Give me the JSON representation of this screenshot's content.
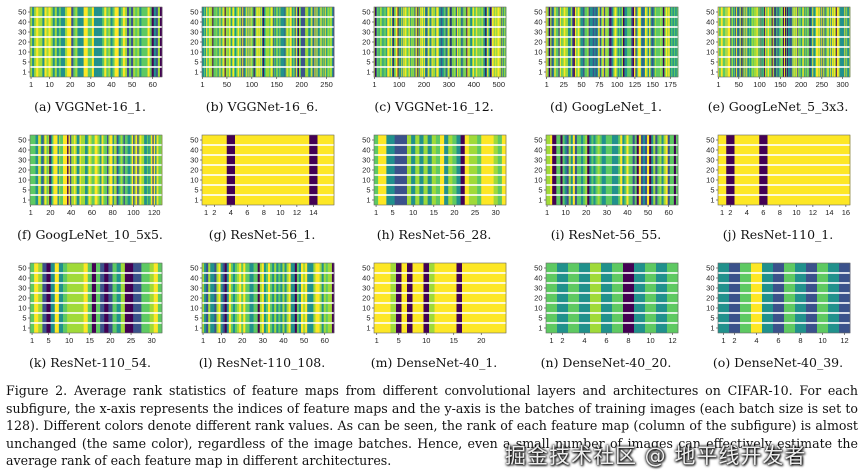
{
  "colors": {
    "viridis": [
      "#440154",
      "#3b528b",
      "#21918c",
      "#5ec962",
      "#a0da39",
      "#fde725"
    ]
  },
  "figure": {
    "caption_label": "Figure 2.",
    "caption_text": "Average rank statistics of feature maps from different convolutional layers and architectures on CIFAR-10. For each subfigure, the x-axis represents the indices of feature maps and the y-axis is the batches of training images (each batch size is set to 128). Different colors denote different rank values. As can be seen, the rank of each feature map (column of the subfigure) is almost unchanged (the same color), regardless of the image batches. Hence, even a small number of images can effectively estimate the average rank of each feature map in different architectures.",
    "watermark": "掘金技术社区 @ 地平线开发者"
  },
  "chart_data": [
    {
      "type": "heatmap",
      "label": "(a) VGGNet-16_1.",
      "x_ticks": [
        1,
        10,
        20,
        30,
        40,
        50,
        60
      ],
      "y_ticks": [
        50,
        40,
        30,
        20,
        10,
        5,
        1
      ],
      "n_cols": 64,
      "bands": false
    },
    {
      "type": "heatmap",
      "label": "(b) VGGNet-16_6.",
      "x_ticks": [
        1,
        50,
        100,
        150,
        200,
        250
      ],
      "y_ticks": [
        50,
        40,
        30,
        20,
        10,
        5,
        1
      ],
      "n_cols": 128,
      "bands": false
    },
    {
      "type": "heatmap",
      "label": "(c) VGGNet-16_12.",
      "x_ticks": [
        1,
        100,
        200,
        300,
        400,
        500
      ],
      "y_ticks": [
        50,
        40,
        30,
        20,
        10,
        5,
        1
      ],
      "n_cols": 140,
      "bands": false
    },
    {
      "type": "heatmap",
      "label": "(d) GoogLeNet_1.",
      "x_ticks": [
        1,
        25,
        50,
        75,
        100,
        125,
        150,
        175
      ],
      "y_ticks": [
        50,
        40,
        30,
        20,
        10,
        5,
        1
      ],
      "n_cols": 96,
      "bands": false
    },
    {
      "type": "heatmap",
      "label": "(e) GoogLeNet_5_3x3.",
      "x_ticks": [
        1,
        50,
        100,
        150,
        200,
        250,
        300
      ],
      "y_ticks": [
        50,
        40,
        30,
        20,
        10,
        5,
        1
      ],
      "n_cols": 140,
      "bands": false
    },
    {
      "type": "heatmap",
      "label": "(f) GoogLeNet_10_5x5.",
      "x_ticks": [
        1,
        20,
        40,
        60,
        80,
        100,
        120
      ],
      "y_ticks": [
        50,
        40,
        30,
        20,
        10,
        5,
        1
      ],
      "n_cols": 96,
      "bands": false
    },
    {
      "type": "heatmap",
      "label": "(g) ResNet-56_1.",
      "x_ticks": [
        1,
        2,
        4,
        6,
        8,
        10,
        12,
        14
      ],
      "y_ticks": [
        50,
        40,
        30,
        20,
        10,
        5,
        1
      ],
      "n_cols": 16,
      "bands": true,
      "values": [
        5,
        5,
        5,
        0,
        5,
        5,
        5,
        5,
        5,
        5,
        5,
        5,
        5,
        0,
        5,
        5
      ]
    },
    {
      "type": "heatmap",
      "label": "(h) ResNet-56_28.",
      "x_ticks": [
        1,
        5,
        10,
        15,
        20,
        25,
        30
      ],
      "y_ticks": [
        50,
        40,
        30,
        20,
        10,
        5,
        1
      ],
      "n_cols": 32,
      "bands": false
    },
    {
      "type": "heatmap",
      "label": "(i) ResNet-56_55.",
      "x_ticks": [
        1,
        10,
        20,
        30,
        40,
        50,
        60
      ],
      "y_ticks": [
        50,
        40,
        30,
        20,
        10,
        5,
        1
      ],
      "n_cols": 64,
      "bands": false
    },
    {
      "type": "heatmap",
      "label": "(j) ResNet-110_1.",
      "x_ticks": [
        1,
        2,
        4,
        6,
        8,
        10,
        12,
        14,
        16
      ],
      "y_ticks": [
        50,
        40,
        30,
        20,
        10,
        5,
        1
      ],
      "n_cols": 16,
      "bands": true,
      "values": [
        5,
        0,
        5,
        5,
        5,
        0,
        5,
        5,
        5,
        5,
        5,
        5,
        5,
        5,
        5,
        5
      ]
    },
    {
      "type": "heatmap",
      "label": "(k) ResNet-110_54.",
      "x_ticks": [
        1,
        5,
        10,
        15,
        20,
        25,
        30
      ],
      "y_ticks": [
        50,
        40,
        30,
        20,
        10,
        5,
        1
      ],
      "n_cols": 32,
      "bands": false
    },
    {
      "type": "heatmap",
      "label": "(l) ResNet-110_108.",
      "x_ticks": [
        1,
        10,
        20,
        30,
        40,
        50,
        60
      ],
      "y_ticks": [
        50,
        40,
        30,
        20,
        10,
        5,
        1
      ],
      "n_cols": 64,
      "bands": false
    },
    {
      "type": "heatmap",
      "label": "(m) DenseNet-40_1.",
      "x_ticks": [
        1,
        5,
        10,
        15,
        20
      ],
      "y_ticks": [
        50,
        40,
        30,
        20,
        10,
        5,
        1
      ],
      "n_cols": 24,
      "bands": true,
      "values": [
        5,
        5,
        5,
        4,
        0,
        5,
        0,
        5,
        5,
        0,
        4,
        5,
        5,
        5,
        5,
        0,
        5,
        5,
        5,
        5,
        5,
        5,
        5,
        5
      ]
    },
    {
      "type": "heatmap",
      "label": "(n) DenseNet-40_20.",
      "x_ticks": [
        1,
        2,
        4,
        6,
        8,
        10,
        12
      ],
      "y_ticks": [
        50,
        40,
        30,
        20,
        10,
        5,
        1
      ],
      "n_cols": 12,
      "bands": true,
      "values": [
        3,
        2,
        3,
        2,
        4,
        2,
        3,
        0,
        2,
        3,
        2,
        3
      ]
    },
    {
      "type": "heatmap",
      "label": "(o) DenseNet-40_39.",
      "x_ticks": [
        1,
        2,
        4,
        6,
        8,
        10,
        12
      ],
      "y_ticks": [
        50,
        40,
        30,
        20,
        10,
        5,
        1
      ],
      "n_cols": 12,
      "bands": true,
      "values": [
        2,
        1,
        3,
        5,
        2,
        1,
        3,
        2,
        1,
        3,
        2,
        1
      ]
    }
  ]
}
